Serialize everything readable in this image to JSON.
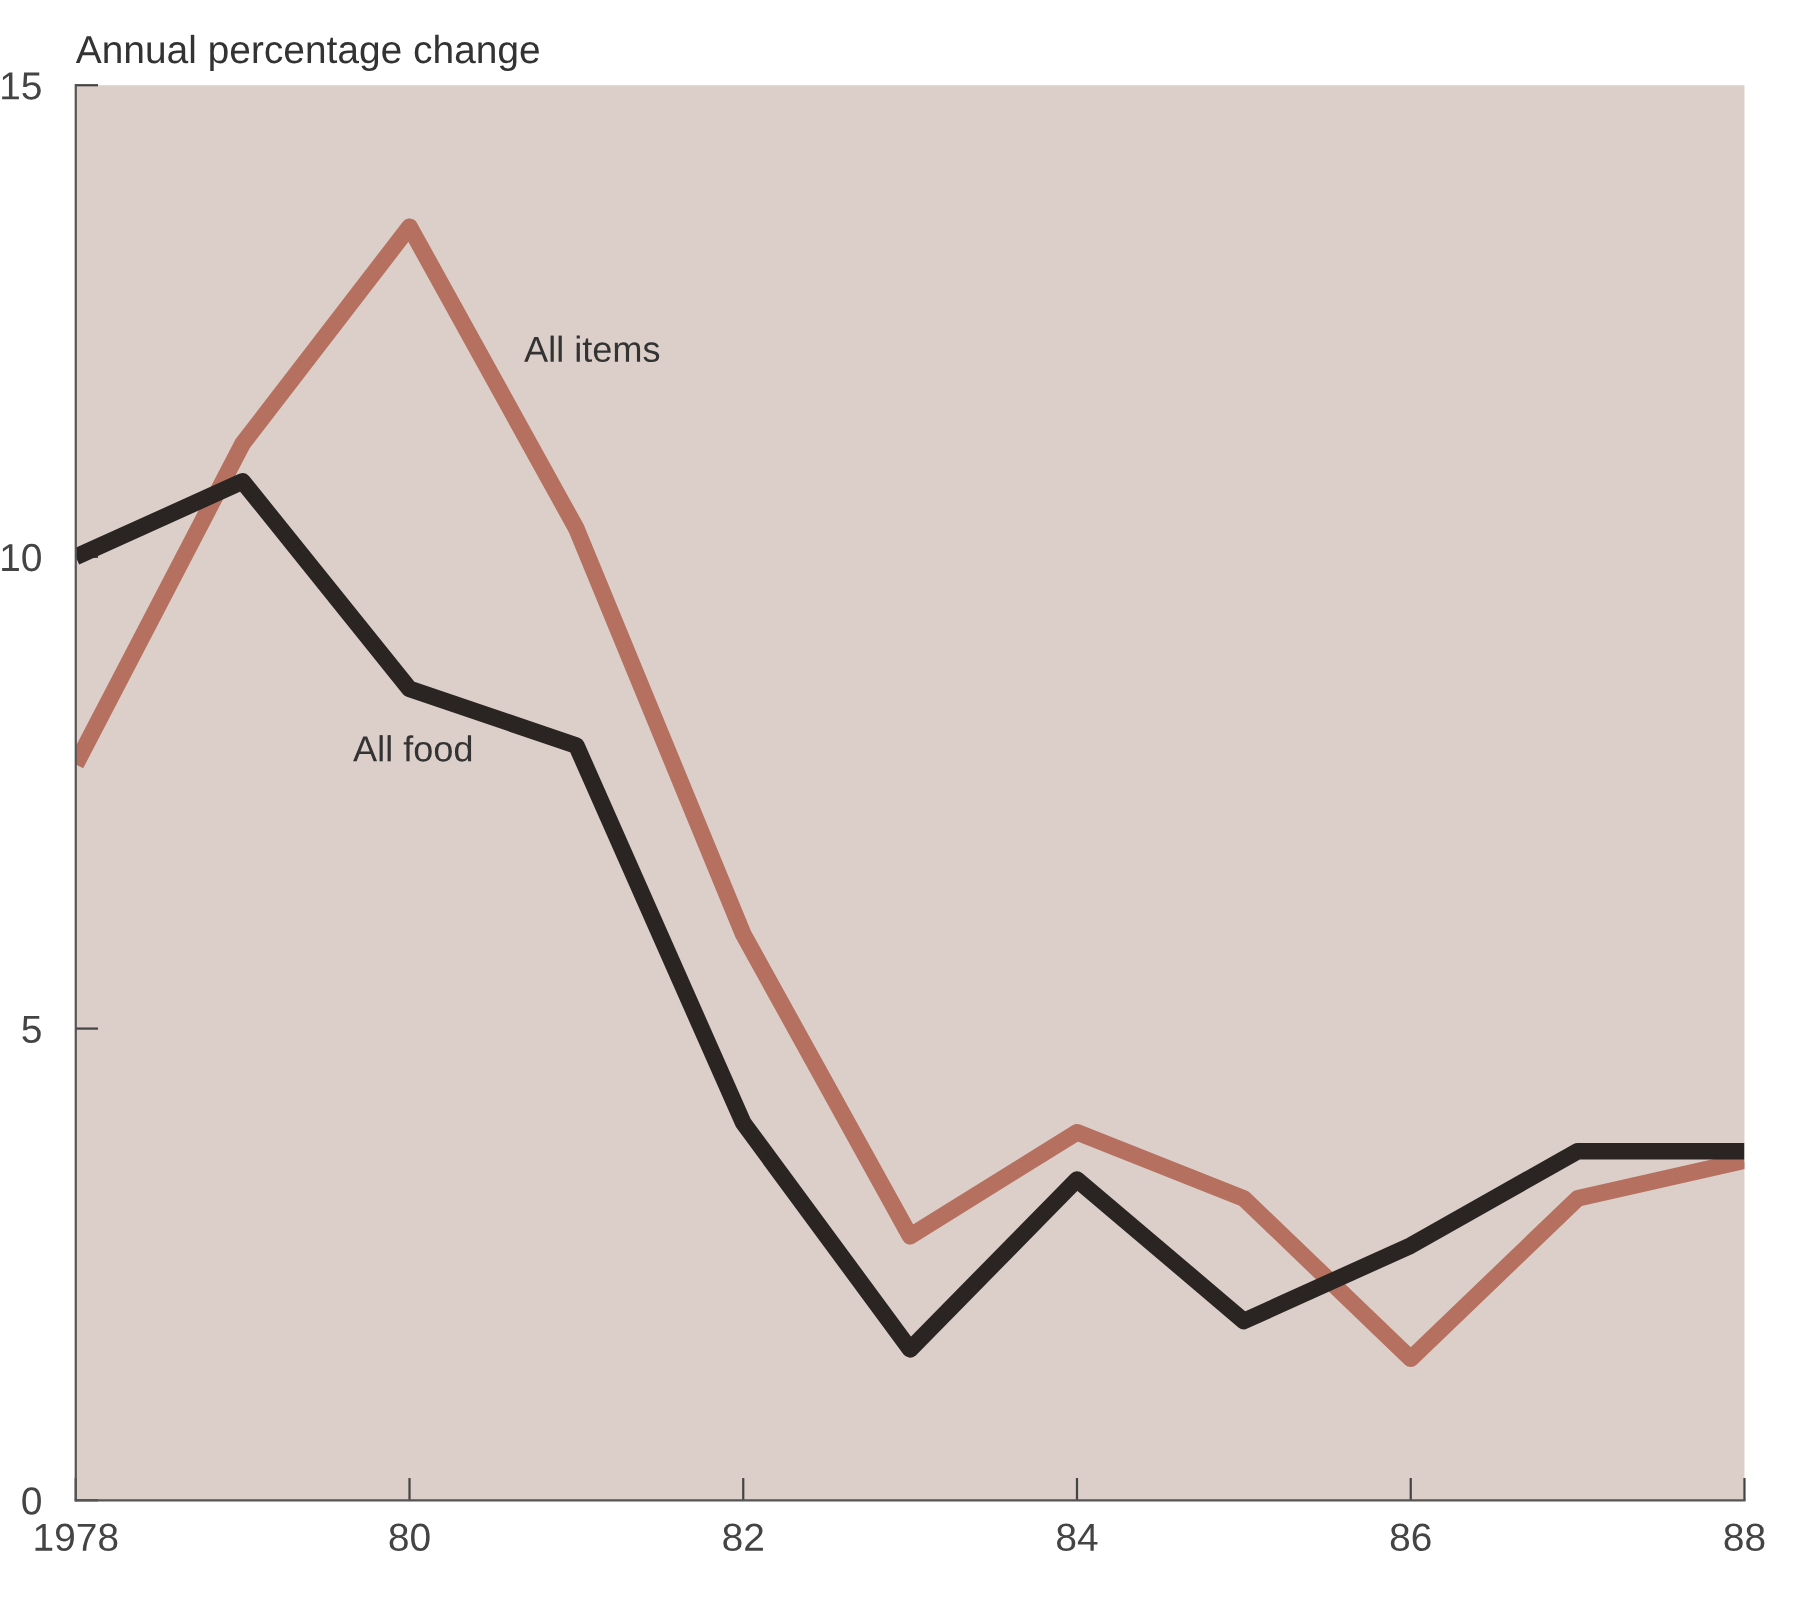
{
  "chart_data": {
    "type": "line",
    "ylabel": "Annual percentage change",
    "x": [
      1978,
      1979,
      1980,
      1981,
      1982,
      1983,
      1984,
      1985,
      1986,
      1987,
      1988
    ],
    "series": [
      {
        "name": "All items",
        "color": "#b5705f",
        "values": [
          7.8,
          11.2,
          13.5,
          10.3,
          6.0,
          2.8,
          3.9,
          3.2,
          1.5,
          3.2,
          3.6
        ]
      },
      {
        "name": "All food",
        "color": "#2a2523",
        "values": [
          10.0,
          10.8,
          8.6,
          8.0,
          4.0,
          1.6,
          3.4,
          1.9,
          2.7,
          3.7,
          3.7
        ]
      }
    ],
    "xlim": [
      1978,
      1988
    ],
    "xticks": [
      1978,
      {
        "value": 1980,
        "label": "80"
      },
      {
        "value": 1982,
        "label": "82"
      },
      {
        "value": 1984,
        "label": "84"
      },
      {
        "value": 1986,
        "label": "86"
      },
      {
        "value": 1988,
        "label": "88"
      }
    ],
    "ylim": [
      0,
      15
    ],
    "yticks": [
      0,
      5,
      10,
      15
    ],
    "grid": false,
    "legend": false,
    "marker": "none",
    "line_style": "solid"
  }
}
